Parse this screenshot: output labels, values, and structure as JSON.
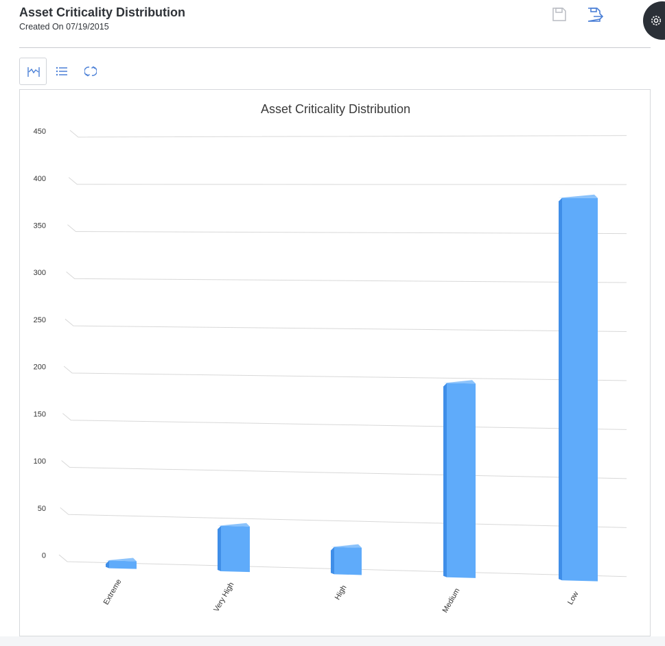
{
  "page": {
    "title": "Asset Criticality Distribution",
    "subtitle": "Created On 07/19/2015"
  },
  "header_actions": [
    {
      "icon": "save-icon",
      "enabled": false
    },
    {
      "icon": "export-icon",
      "enabled": true
    },
    {
      "icon": "gear-icon",
      "enabled": true
    }
  ],
  "toolbar": [
    {
      "icon": "chart-view-icon",
      "active": true
    },
    {
      "icon": "list-view-icon",
      "active": false
    },
    {
      "icon": "refresh-icon",
      "active": false
    }
  ],
  "colors": {
    "accent": "#4a7fd6",
    "bar_front": "#5fabfa",
    "bar_side": "#3f8ee8",
    "bar_top": "#8cc3fb",
    "grid": "#d8d8d8",
    "settings_bg": "#2b3037"
  },
  "chart_data": {
    "type": "bar",
    "title": "Asset Criticality Distribution",
    "categories": [
      "Extreme",
      "Very High",
      "High",
      "Medium",
      "Low"
    ],
    "values": [
      8,
      47,
      28,
      198,
      387
    ],
    "xlabel": "",
    "ylabel": "",
    "ylim": [
      0,
      450
    ],
    "yticks": [
      0,
      50,
      100,
      150,
      200,
      250,
      300,
      350,
      400,
      450
    ],
    "grid": true,
    "legend": "none",
    "style": "3d-perspective"
  }
}
